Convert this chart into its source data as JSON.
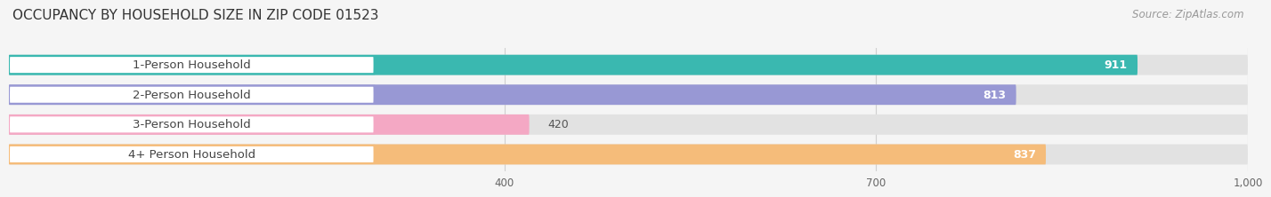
{
  "title": "OCCUPANCY BY HOUSEHOLD SIZE IN ZIP CODE 01523",
  "source": "Source: ZipAtlas.com",
  "categories": [
    "1-Person Household",
    "2-Person Household",
    "3-Person Household",
    "4+ Person Household"
  ],
  "values": [
    911,
    813,
    420,
    837
  ],
  "bar_colors": [
    "#3ab8b0",
    "#9898d4",
    "#f4a8c4",
    "#f5bc7a"
  ],
  "background_color": "#f5f5f5",
  "bar_bg_color": "#e2e2e2",
  "label_bg_color": "#ffffff",
  "xlim_data": [
    0,
    1000
  ],
  "xticks": [
    400,
    700,
    1000
  ],
  "title_fontsize": 11,
  "label_fontsize": 9.5,
  "value_fontsize": 9,
  "source_fontsize": 8.5
}
